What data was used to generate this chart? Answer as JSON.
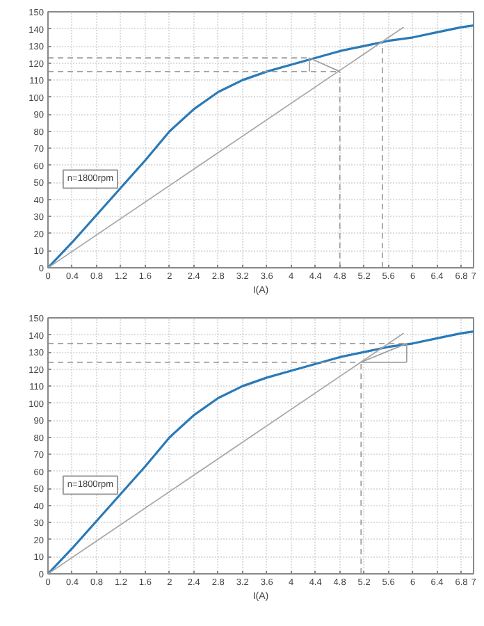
{
  "chart_data": [
    {
      "type": "line",
      "xlabel": "I(A)",
      "xlim": [
        0,
        7
      ],
      "ylim": [
        0,
        150
      ],
      "xticks": [
        0,
        0.4,
        0.8,
        1.2,
        1.6,
        2,
        2.4,
        2.8,
        3.2,
        3.6,
        4,
        4.4,
        4.8,
        5.2,
        5.6,
        6,
        6.4,
        6.8,
        7
      ],
      "yticks": [
        0,
        10,
        20,
        30,
        40,
        50,
        60,
        70,
        80,
        90,
        100,
        110,
        120,
        130,
        140,
        150
      ],
      "grid": true,
      "annotations": [
        "n=1800rpm"
      ],
      "x": [
        0,
        0.4,
        0.8,
        1.2,
        1.6,
        2,
        2.4,
        2.8,
        3.2,
        3.6,
        4,
        4.4,
        4.8,
        5.2,
        5.6,
        6,
        6.4,
        6.8,
        7
      ],
      "series": [
        {
          "color": "#2a7ab8",
          "values": [
            0,
            15,
            31,
            47,
            63,
            80,
            93,
            103,
            110,
            115,
            119,
            123,
            127,
            130,
            133,
            135,
            138,
            141,
            142
          ]
        },
        {
          "color": "#a8a8a8",
          "x": [
            0,
            5.85
          ],
          "values": [
            0,
            141
          ]
        },
        {
          "color": "#a0a0a0",
          "line_style": "dashed",
          "x": [
            0,
            4.3
          ],
          "values": [
            123,
            123
          ]
        },
        {
          "color": "#a0a0a0",
          "line_style": "dashed",
          "x": [
            0,
            4.8
          ],
          "values": [
            115,
            115
          ]
        },
        {
          "color": "#a0a0a0",
          "line_style": "dashed",
          "x": [
            4.8,
            4.8
          ],
          "values": [
            0,
            115
          ]
        },
        {
          "color": "#a0a0a0",
          "line_style": "dashed",
          "x": [
            5.5,
            5.5
          ],
          "values": [
            0,
            132
          ]
        },
        {
          "color": "#a0a0a0",
          "x": [
            4.3,
            4.3
          ],
          "values": [
            115,
            123
          ]
        },
        {
          "color": "#a0a0a0",
          "x": [
            4.3,
            4.8
          ],
          "values": [
            123,
            115
          ]
        }
      ]
    },
    {
      "type": "line",
      "xlabel": "I(A)",
      "xlim": [
        0,
        7
      ],
      "ylim": [
        0,
        150
      ],
      "xticks": [
        0,
        0.4,
        0.8,
        1.2,
        1.6,
        2,
        2.4,
        2.8,
        3.2,
        3.6,
        4,
        4.4,
        4.8,
        5.2,
        5.6,
        6,
        6.4,
        6.8,
        7
      ],
      "yticks": [
        0,
        10,
        20,
        30,
        40,
        50,
        60,
        70,
        80,
        90,
        100,
        110,
        120,
        130,
        140,
        150
      ],
      "grid": true,
      "annotations": [
        "n=1800rpm"
      ],
      "x": [
        0,
        0.4,
        0.8,
        1.2,
        1.6,
        2,
        2.4,
        2.8,
        3.2,
        3.6,
        4,
        4.4,
        4.8,
        5.2,
        5.6,
        6,
        6.4,
        6.8,
        7
      ],
      "series": [
        {
          "color": "#2a7ab8",
          "values": [
            0,
            15,
            31,
            47,
            63,
            80,
            93,
            103,
            110,
            115,
            119,
            123,
            127,
            130,
            133,
            135,
            138,
            141,
            142
          ]
        },
        {
          "color": "#a8a8a8",
          "x": [
            0,
            5.85
          ],
          "values": [
            0,
            141
          ]
        },
        {
          "color": "#a0a0a0",
          "line_style": "dashed",
          "x": [
            0,
            5.9
          ],
          "values": [
            135,
            135
          ]
        },
        {
          "color": "#a0a0a0",
          "line_style": "dashed",
          "x": [
            0,
            5.15
          ],
          "values": [
            124,
            124
          ]
        },
        {
          "color": "#a0a0a0",
          "line_style": "dashed",
          "x": [
            5.15,
            5.15
          ],
          "values": [
            0,
            124
          ]
        },
        {
          "color": "#a0a0a0",
          "x": [
            5.15,
            5.9
          ],
          "values": [
            124,
            124
          ]
        },
        {
          "color": "#a0a0a0",
          "x": [
            5.9,
            5.9
          ],
          "values": [
            124,
            135
          ]
        },
        {
          "color": "#a0a0a0",
          "x": [
            5.15,
            5.9
          ],
          "values": [
            124,
            135
          ]
        }
      ]
    }
  ]
}
